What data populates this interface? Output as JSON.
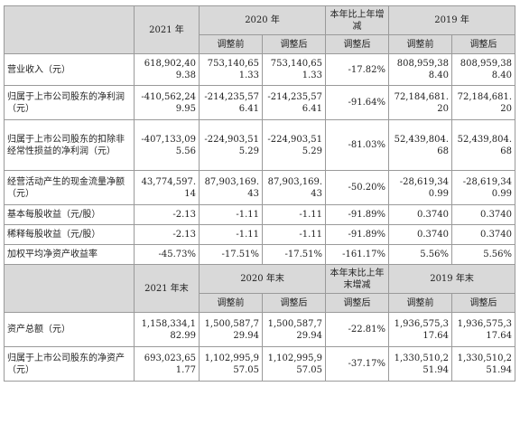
{
  "headers": {
    "y2021": "2021 年",
    "y2020": "2020 年",
    "change": "本年比上年增减",
    "y2019": "2019 年",
    "before": "调整前",
    "after": "调整后",
    "y2021_end": "2021 年末",
    "y2020_end": "2020 年末",
    "change_end": "本年末比上年末增减",
    "y2019_end": "2019 年末"
  },
  "rows": [
    {
      "label": "营业收入（元）",
      "v2021": "618,902,409.38",
      "v2020_before": "753,140,651.33",
      "v2020_after": "753,140,651.33",
      "change": "-17.82%",
      "v2019_before": "808,959,388.40",
      "v2019_after": "808,959,388.40"
    },
    {
      "label": "归属于上市公司股东的净利润（元）",
      "v2021": "-410,562,249.95",
      "v2020_before": "-214,235,576.41",
      "v2020_after": "-214,235,576.41",
      "change": "-91.64%",
      "v2019_before": "72,184,681.20",
      "v2019_after": "72,184,681.20"
    },
    {
      "label": "归属于上市公司股东的扣除非经常性损益的净利润（元）",
      "v2021": "-407,133,095.56",
      "v2020_before": "-224,903,515.29",
      "v2020_after": "-224,903,515.29",
      "change": "-81.03%",
      "v2019_before": "52,439,804.68",
      "v2019_after": "52,439,804.68"
    },
    {
      "label": "经营活动产生的现金流量净额（元）",
      "v2021": "43,774,597.14",
      "v2020_before": "87,903,169.43",
      "v2020_after": "87,903,169.43",
      "change": "-50.20%",
      "v2019_before": "-28,619,340.99",
      "v2019_after": "-28,619,340.99"
    },
    {
      "label": "基本每股收益（元/股）",
      "v2021": "-2.13",
      "v2020_before": "-1.11",
      "v2020_after": "-1.11",
      "change": "-91.89%",
      "v2019_before": "0.3740",
      "v2019_after": "0.3740"
    },
    {
      "label": "稀释每股收益（元/股）",
      "v2021": "-2.13",
      "v2020_before": "-1.11",
      "v2020_after": "-1.11",
      "change": "-91.89%",
      "v2019_before": "0.3740",
      "v2019_after": "0.3740"
    },
    {
      "label": "加权平均净资产收益率",
      "v2021": "-45.73%",
      "v2020_before": "-17.51%",
      "v2020_after": "-17.51%",
      "change": "-161.17%",
      "v2019_before": "5.56%",
      "v2019_after": "5.56%"
    }
  ],
  "rows_end": [
    {
      "label": "资产总额（元）",
      "v2021": "1,158,334,182.99",
      "v2020_before": "1,500,587,729.94",
      "v2020_after": "1,500,587,729.94",
      "change": "-22.81%",
      "v2019_before": "1,936,575,317.64",
      "v2019_after": "1,936,575,317.64"
    },
    {
      "label": "归属于上市公司股东的净资产（元）",
      "v2021": "693,023,651.77",
      "v2020_before": "1,102,995,957.05",
      "v2020_after": "1,102,995,957.05",
      "change": "-37.17%",
      "v2019_before": "1,330,510,251.94",
      "v2019_after": "1,330,510,251.94"
    }
  ]
}
